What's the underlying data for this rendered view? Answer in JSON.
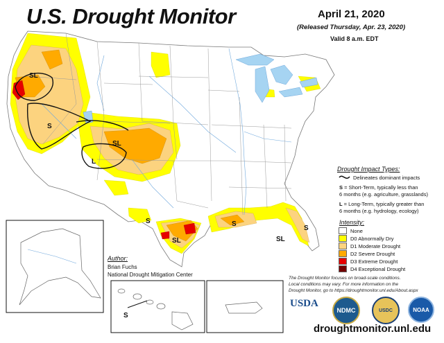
{
  "header": {
    "title": "U.S. Drought Monitor",
    "date": "April 21, 2020",
    "released": "(Released Thursday, Apr. 23, 2020)",
    "valid": "Valid 8 a.m. EDT"
  },
  "map_labels": {
    "sl_oregon": "SL",
    "s_nevada": "S",
    "sl_colorado": "SL",
    "l_utah": "L",
    "s_texas_west": "S",
    "sl_texas": "SL",
    "s_gulf": "S",
    "sl_florida": "SL",
    "s_florida": "S",
    "s_hawaii": "S"
  },
  "impact_legend": {
    "title": "Drought Impact Types:",
    "delineates": "Delineates dominant impacts",
    "short_key": "S",
    "short_line1": " = Short-Term, typically less than",
    "short_line2": "6 months (e.g. agriculture, grasslands)",
    "long_key": "L",
    "long_line1": " = Long-Term, typically greater than",
    "long_line2": "6 months (e.g. hydrology, ecology)"
  },
  "intensity_legend": {
    "title": "Intensity:",
    "items": [
      {
        "label": "None",
        "color": "#ffffff"
      },
      {
        "label": "D0 Abnormally Dry",
        "color": "#ffff00"
      },
      {
        "label": "D1 Moderate Drought",
        "color": "#fcd37f"
      },
      {
        "label": "D2 Severe Drought",
        "color": "#ffaa00"
      },
      {
        "label": "D3 Extreme Drought",
        "color": "#e60000"
      },
      {
        "label": "D4 Exceptional Drought",
        "color": "#730000"
      }
    ]
  },
  "author": {
    "title": "Author:",
    "name": "Brian Fuchs",
    "org": "National Drought Mitigation Center"
  },
  "notes": {
    "line1": "The Drought Monitor focuses on broad-scale conditions.",
    "line2": "Local conditions may vary. For more information on the",
    "line3": "Drought Monitor, go to https://droughtmonitor.unl.edu/About.aspx"
  },
  "logos": {
    "usda": "USDA",
    "ndmc": "NDMC",
    "usdc": "USDC",
    "noaa": "NOAA"
  },
  "footer": {
    "url": "droughtmonitor.unl.edu"
  },
  "colors": {
    "water": "#a6d4f2",
    "rivers": "#6fa8dc",
    "state_lines": "#888888",
    "d0": "#ffff00",
    "d1": "#fcd37f",
    "d2": "#ffaa00",
    "d3": "#e60000",
    "d4": "#730000"
  }
}
